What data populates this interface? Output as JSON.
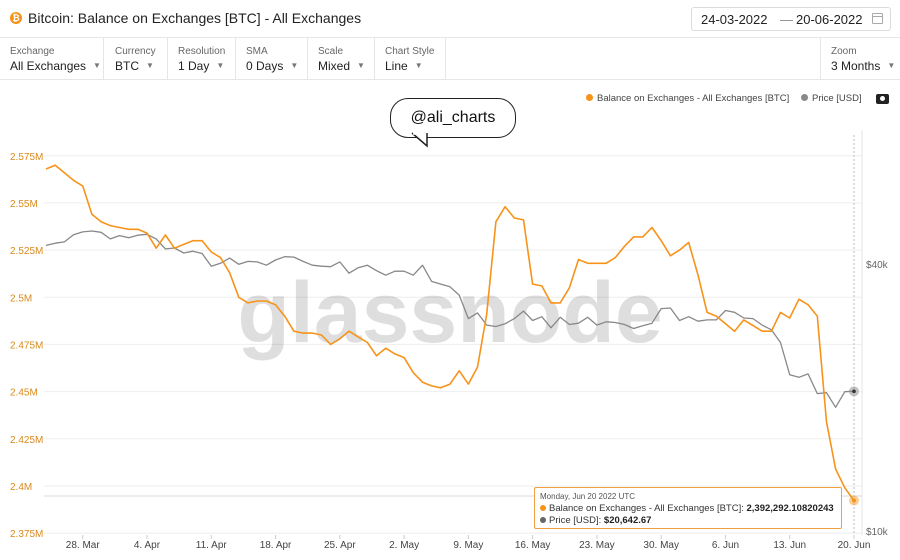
{
  "header": {
    "title": "Bitcoin: Balance on Exchanges [BTC] - All Exchanges",
    "coin_icon": "₿",
    "date_from": "24-03-2022",
    "date_separator": "—",
    "date_to": "20-06-2022"
  },
  "controls": [
    {
      "label": "Exchange",
      "value": "All Exchanges"
    },
    {
      "label": "Currency",
      "value": "BTC"
    },
    {
      "label": "Resolution",
      "value": "1 Day"
    },
    {
      "label": "SMA",
      "value": "0 Days"
    },
    {
      "label": "Scale",
      "value": "Mixed"
    },
    {
      "label": "Chart Style",
      "value": "Line"
    },
    {
      "label": "Zoom",
      "value": "3 Months"
    }
  ],
  "watermark": "glassnode",
  "annotation": "@ali_charts",
  "tooltip": {
    "date": "Monday, Jun 20 2022 UTC",
    "balance_label": "Balance on Exchanges - All Exchanges [BTC]:",
    "balance_value": "2,392,292.10820243",
    "price_label": "Price [USD]:",
    "price_value": "$20,642.67"
  },
  "colors": {
    "balance": "#f7931a",
    "price": "#888888",
    "grid": "#eeeeee"
  },
  "chart_data": {
    "type": "line",
    "legend": [
      {
        "name": "Balance on Exchanges - All Exchanges [BTC]",
        "color": "#f7931a"
      },
      {
        "name": "Price [USD]",
        "color": "#888888"
      }
    ],
    "legend_position": "top-right",
    "x_tick_labels": [
      "28. Mar",
      "4. Apr",
      "11. Apr",
      "18. Apr",
      "25. Apr",
      "2. May",
      "9. May",
      "16. May",
      "23. May",
      "30. May",
      "6. Jun",
      "13. Jun",
      "20. Jun"
    ],
    "x_start": "2022-03-24",
    "x_end": "2022-06-20",
    "left_axis": {
      "ticks": [
        "2.375M",
        "2.4M",
        "2.425M",
        "2.45M",
        "2.475M",
        "2.5M",
        "2.525M",
        "2.55M",
        "2.575M"
      ],
      "tick_values": [
        2375000,
        2400000,
        2425000,
        2450000,
        2475000,
        2500000,
        2525000,
        2550000,
        2575000
      ],
      "range": [
        2374000,
        2586000
      ]
    },
    "right_axis": {
      "scale": "log",
      "ticks": [
        "$10k",
        "$40k"
      ],
      "tick_values": [
        10000,
        40000
      ],
      "range": [
        9800,
        78000
      ]
    },
    "series": [
      {
        "name": "Balance on Exchanges - All Exchanges [BTC]",
        "axis": "left",
        "points": [
          [
            "2022-03-24",
            2568000
          ],
          [
            "2022-03-25",
            2570000
          ],
          [
            "2022-03-26",
            2566000
          ],
          [
            "2022-03-27",
            2562000
          ],
          [
            "2022-03-28",
            2559000
          ],
          [
            "2022-03-29",
            2544000
          ],
          [
            "2022-03-30",
            2540000
          ],
          [
            "2022-03-31",
            2538000
          ],
          [
            "2022-04-01",
            2537000
          ],
          [
            "2022-04-02",
            2536000
          ],
          [
            "2022-04-03",
            2536000
          ],
          [
            "2022-04-04",
            2534000
          ],
          [
            "2022-04-05",
            2526000
          ],
          [
            "2022-04-06",
            2533000
          ],
          [
            "2022-04-07",
            2526000
          ],
          [
            "2022-04-08",
            2528000
          ],
          [
            "2022-04-09",
            2530000
          ],
          [
            "2022-04-10",
            2530000
          ],
          [
            "2022-04-11",
            2524000
          ],
          [
            "2022-04-12",
            2521000
          ],
          [
            "2022-04-13",
            2513000
          ],
          [
            "2022-04-14",
            2500000
          ],
          [
            "2022-04-15",
            2497000
          ],
          [
            "2022-04-16",
            2498000
          ],
          [
            "2022-04-17",
            2498000
          ],
          [
            "2022-04-18",
            2496000
          ],
          [
            "2022-04-19",
            2490000
          ],
          [
            "2022-04-20",
            2482000
          ],
          [
            "2022-04-21",
            2481000
          ],
          [
            "2022-04-22",
            2481000
          ],
          [
            "2022-04-23",
            2480000
          ],
          [
            "2022-04-24",
            2475000
          ],
          [
            "2022-04-25",
            2478000
          ],
          [
            "2022-04-26",
            2482000
          ],
          [
            "2022-04-27",
            2479000
          ],
          [
            "2022-04-28",
            2476000
          ],
          [
            "2022-04-29",
            2469000
          ],
          [
            "2022-04-30",
            2473000
          ],
          [
            "2022-05-01",
            2470000
          ],
          [
            "2022-05-02",
            2468000
          ],
          [
            "2022-05-03",
            2460000
          ],
          [
            "2022-05-04",
            2455000
          ],
          [
            "2022-05-05",
            2453000
          ],
          [
            "2022-05-06",
            2452000
          ],
          [
            "2022-05-07",
            2454000
          ],
          [
            "2022-05-08",
            2461000
          ],
          [
            "2022-05-09",
            2454000
          ],
          [
            "2022-05-10",
            2463000
          ],
          [
            "2022-05-11",
            2491000
          ],
          [
            "2022-05-12",
            2540000
          ],
          [
            "2022-05-13",
            2548000
          ],
          [
            "2022-05-14",
            2542000
          ],
          [
            "2022-05-15",
            2541000
          ],
          [
            "2022-05-16",
            2507000
          ],
          [
            "2022-05-17",
            2506000
          ],
          [
            "2022-05-18",
            2497000
          ],
          [
            "2022-05-19",
            2497000
          ],
          [
            "2022-05-20",
            2505000
          ],
          [
            "2022-05-21",
            2520000
          ],
          [
            "2022-05-22",
            2518000
          ],
          [
            "2022-05-23",
            2518000
          ],
          [
            "2022-05-24",
            2518000
          ],
          [
            "2022-05-25",
            2521000
          ],
          [
            "2022-05-26",
            2527000
          ],
          [
            "2022-05-27",
            2532000
          ],
          [
            "2022-05-28",
            2532000
          ],
          [
            "2022-05-29",
            2537000
          ],
          [
            "2022-05-30",
            2530000
          ],
          [
            "2022-05-31",
            2522000
          ],
          [
            "2022-06-01",
            2525000
          ],
          [
            "2022-06-02",
            2529000
          ],
          [
            "2022-06-03",
            2512000
          ],
          [
            "2022-06-04",
            2492000
          ],
          [
            "2022-06-05",
            2490000
          ],
          [
            "2022-06-06",
            2486000
          ],
          [
            "2022-06-07",
            2482000
          ],
          [
            "2022-06-08",
            2488000
          ],
          [
            "2022-06-09",
            2485000
          ],
          [
            "2022-06-10",
            2482000
          ],
          [
            "2022-06-11",
            2482000
          ],
          [
            "2022-06-12",
            2492000
          ],
          [
            "2022-06-13",
            2489000
          ],
          [
            "2022-06-14",
            2499000
          ],
          [
            "2022-06-15",
            2496000
          ],
          [
            "2022-06-16",
            2490000
          ],
          [
            "2022-06-17",
            2434000
          ],
          [
            "2022-06-18",
            2409000
          ],
          [
            "2022-06-19",
            2399000
          ],
          [
            "2022-06-20",
            2392292
          ]
        ]
      },
      {
        "name": "Price [USD]",
        "axis": "right",
        "points": [
          [
            "2022-03-24",
            44000
          ],
          [
            "2022-03-25",
            44500
          ],
          [
            "2022-03-26",
            44800
          ],
          [
            "2022-03-27",
            46500
          ],
          [
            "2022-03-28",
            47200
          ],
          [
            "2022-03-29",
            47400
          ],
          [
            "2022-03-30",
            47100
          ],
          [
            "2022-03-31",
            45500
          ],
          [
            "2022-04-01",
            46300
          ],
          [
            "2022-04-02",
            45800
          ],
          [
            "2022-04-03",
            46400
          ],
          [
            "2022-04-04",
            46600
          ],
          [
            "2022-04-05",
            45500
          ],
          [
            "2022-04-06",
            43200
          ],
          [
            "2022-04-07",
            43400
          ],
          [
            "2022-04-08",
            42300
          ],
          [
            "2022-04-09",
            42700
          ],
          [
            "2022-04-10",
            42200
          ],
          [
            "2022-04-11",
            39500
          ],
          [
            "2022-04-12",
            40100
          ],
          [
            "2022-04-13",
            41200
          ],
          [
            "2022-04-14",
            39900
          ],
          [
            "2022-04-15",
            40500
          ],
          [
            "2022-04-16",
            40400
          ],
          [
            "2022-04-17",
            39700
          ],
          [
            "2022-04-18",
            40800
          ],
          [
            "2022-04-19",
            41500
          ],
          [
            "2022-04-20",
            41400
          ],
          [
            "2022-04-21",
            40500
          ],
          [
            "2022-04-22",
            39700
          ],
          [
            "2022-04-23",
            39500
          ],
          [
            "2022-04-24",
            39400
          ],
          [
            "2022-04-25",
            40400
          ],
          [
            "2022-04-26",
            38100
          ],
          [
            "2022-04-27",
            39200
          ],
          [
            "2022-04-28",
            39700
          ],
          [
            "2022-04-29",
            38600
          ],
          [
            "2022-04-30",
            37700
          ],
          [
            "2022-05-01",
            38500
          ],
          [
            "2022-05-02",
            38500
          ],
          [
            "2022-05-03",
            37700
          ],
          [
            "2022-05-04",
            39700
          ],
          [
            "2022-05-05",
            36500
          ],
          [
            "2022-05-06",
            36000
          ],
          [
            "2022-05-07",
            35500
          ],
          [
            "2022-05-08",
            34000
          ],
          [
            "2022-05-09",
            30100
          ],
          [
            "2022-05-10",
            31000
          ],
          [
            "2022-05-11",
            29100
          ],
          [
            "2022-05-12",
            28900
          ],
          [
            "2022-05-13",
            29300
          ],
          [
            "2022-05-14",
            30100
          ],
          [
            "2022-05-15",
            31300
          ],
          [
            "2022-05-16",
            29800
          ],
          [
            "2022-05-17",
            30400
          ],
          [
            "2022-05-18",
            28700
          ],
          [
            "2022-05-19",
            30300
          ],
          [
            "2022-05-20",
            29200
          ],
          [
            "2022-05-21",
            29400
          ],
          [
            "2022-05-22",
            30300
          ],
          [
            "2022-05-23",
            29100
          ],
          [
            "2022-05-24",
            29600
          ],
          [
            "2022-05-25",
            29500
          ],
          [
            "2022-05-26",
            29200
          ],
          [
            "2022-05-27",
            28600
          ],
          [
            "2022-05-28",
            29000
          ],
          [
            "2022-05-29",
            29400
          ],
          [
            "2022-05-30",
            31700
          ],
          [
            "2022-05-31",
            31800
          ],
          [
            "2022-06-01",
            29800
          ],
          [
            "2022-06-02",
            30400
          ],
          [
            "2022-06-03",
            29700
          ],
          [
            "2022-06-04",
            29900
          ],
          [
            "2022-06-05",
            29900
          ],
          [
            "2022-06-06",
            31400
          ],
          [
            "2022-06-07",
            31100
          ],
          [
            "2022-06-08",
            30200
          ],
          [
            "2022-06-09",
            30100
          ],
          [
            "2022-06-10",
            29100
          ],
          [
            "2022-06-11",
            28400
          ],
          [
            "2022-06-12",
            26600
          ],
          [
            "2022-06-13",
            22500
          ],
          [
            "2022-06-14",
            22200
          ],
          [
            "2022-06-15",
            22600
          ],
          [
            "2022-06-16",
            20400
          ],
          [
            "2022-06-17",
            20500
          ],
          [
            "2022-06-18",
            19000
          ],
          [
            "2022-06-19",
            20600
          ],
          [
            "2022-06-20",
            20643
          ]
        ]
      }
    ]
  }
}
